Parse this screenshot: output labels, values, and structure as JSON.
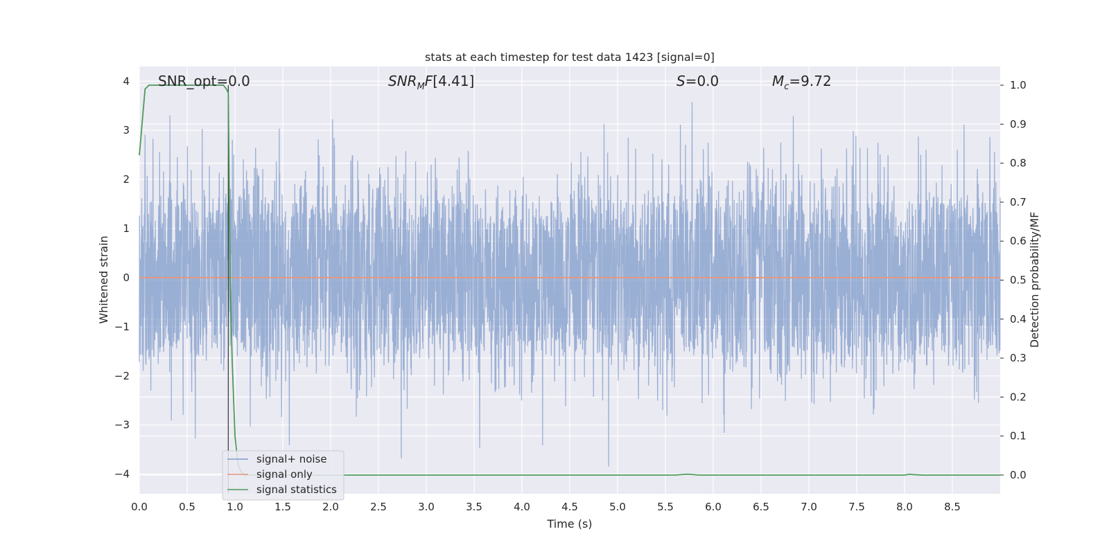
{
  "chart_data": {
    "type": "line",
    "title": "stats at each timestep for test data 1423 [signal=0]",
    "xlabel": "Time (s)",
    "ylabel": "Whitened strain",
    "y2label": "Detection probability/MF",
    "xlim": [
      0.0,
      9.0
    ],
    "ylim": [
      -4.4,
      4.3
    ],
    "y2lim": [
      -0.048,
      1.048
    ],
    "x_ticks": [
      "0.0",
      "0.5",
      "1.0",
      "1.5",
      "2.0",
      "2.5",
      "3.0",
      "3.5",
      "4.0",
      "4.5",
      "5.0",
      "5.5",
      "6.0",
      "6.5",
      "7.0",
      "7.5",
      "8.0",
      "8.5"
    ],
    "y_ticks": [
      "4",
      "3",
      "2",
      "1",
      "0",
      "−1",
      "−2",
      "−3",
      "−4"
    ],
    "y2_ticks": [
      "1.0",
      "0.9",
      "0.8",
      "0.7",
      "0.6",
      "0.5",
      "0.4",
      "0.3",
      "0.2",
      "0.1",
      "0.0"
    ],
    "grid": true,
    "legend_position": "lower-left",
    "annotations": {
      "snr_opt": "SNR_opt=0.0",
      "snr_mf": "[4.41]",
      "s": "=0.0",
      "mc": "=9.72"
    },
    "vline_x": 0.93,
    "series": [
      {
        "name": "signal+ noise",
        "color": "#7f9bc9",
        "axis": "left",
        "description_values": {
          "approx_amplitude_range": [
            -4.0,
            3.95
          ],
          "typical_band": [
            -1.6,
            1.6
          ],
          "samples_per_second": 400
        }
      },
      {
        "name": "signal only",
        "color": "#e8977a",
        "axis": "left",
        "x": [
          0.0,
          9.0
        ],
        "values": [
          0.0,
          0.0
        ]
      },
      {
        "name": "signal statistics",
        "color": "#4c9a5a",
        "axis": "right",
        "x": [
          0.0,
          0.06,
          0.1,
          0.2,
          0.5,
          0.8,
          0.88,
          0.91,
          0.93,
          0.95,
          0.97,
          1.0,
          1.03,
          1.06,
          1.1,
          1.2,
          2.0,
          3.0,
          4.0,
          5.0,
          5.6,
          5.72,
          5.75,
          5.85,
          6.0,
          7.0,
          8.0,
          8.05,
          8.1,
          8.2,
          9.0
        ],
        "values": [
          0.82,
          0.99,
          1.0,
          1.0,
          1.0,
          1.0,
          1.0,
          0.99,
          0.98,
          0.5,
          0.3,
          0.1,
          0.03,
          0.01,
          0.0,
          0.0,
          0.0,
          0.0,
          0.0,
          0.0,
          0.0,
          0.002,
          0.002,
          0.0,
          0.0,
          0.0,
          0.0,
          0.002,
          0.001,
          0.0,
          0.0
        ]
      }
    ]
  }
}
